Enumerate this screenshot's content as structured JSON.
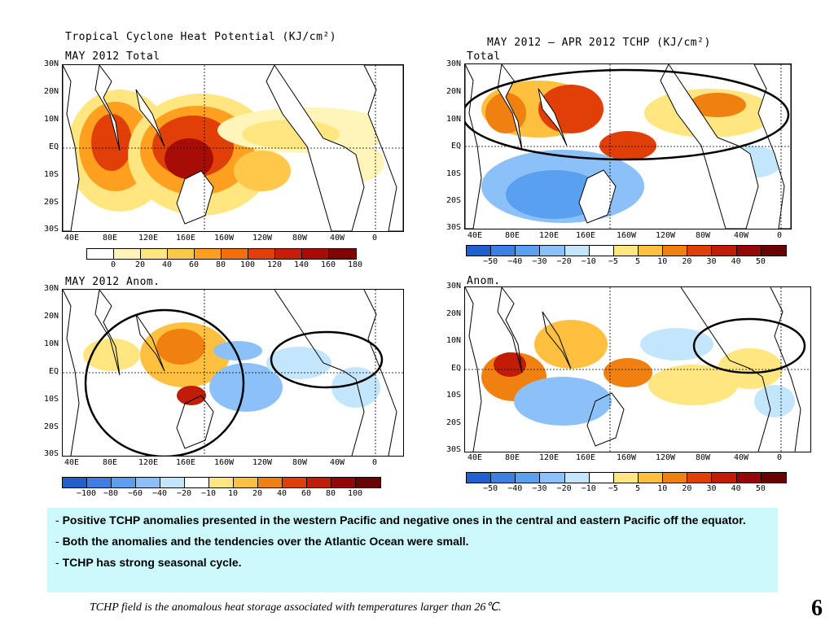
{
  "panels": [
    {
      "title": "Tropical Cyclone Heat Potential (KJ/cm²)",
      "subtitle": "MAY 2012 Total",
      "lat_labels": [
        "30N",
        "20N",
        "10N",
        "EQ",
        "10S",
        "20S",
        "30S"
      ],
      "lon_labels": [
        "40E",
        "80E",
        "120E",
        "160E",
        "160W",
        "120W",
        "80W",
        "40W",
        "0"
      ],
      "colorbar": {
        "colors": [
          "#ffffff",
          "#fff5b8",
          "#ffe680",
          "#ffc84a",
          "#ffa020",
          "#f07010",
          "#e04008",
          "#c81e08",
          "#a80c06",
          "#800404"
        ],
        "labels": [
          "0",
          "20",
          "40",
          "60",
          "80",
          "100",
          "120",
          "140",
          "160",
          "180"
        ]
      }
    },
    {
      "title": "MAY 2012 — APR 2012 TCHP (KJ/cm²)",
      "subtitle": "Total",
      "lat_labels": [
        "30N",
        "20N",
        "10N",
        "EQ",
        "10S",
        "20S",
        "30S"
      ],
      "lon_labels": [
        "40E",
        "80E",
        "120E",
        "160E",
        "160W",
        "120W",
        "80W",
        "40W",
        "0"
      ],
      "colorbar": {
        "colors": [
          "#1f5fd0",
          "#3c80e6",
          "#5aa0f0",
          "#8cc0f8",
          "#c4e6fc",
          "#ffffff",
          "#ffe680",
          "#ffc040",
          "#f08010",
          "#e04008",
          "#c01c08",
          "#960606",
          "#6a0202"
        ],
        "labels": [
          "−50",
          "−40",
          "−30",
          "−20",
          "−10",
          "−5",
          "5",
          "10",
          "20",
          "30",
          "40",
          "50"
        ]
      }
    },
    {
      "title": "",
      "subtitle": "MAY 2012 Anom.",
      "lat_labels": [
        "30N",
        "20N",
        "10N",
        "EQ",
        "10S",
        "20S",
        "30S"
      ],
      "lon_labels": [
        "40E",
        "80E",
        "120E",
        "160E",
        "160W",
        "120W",
        "80W",
        "40W",
        "0"
      ],
      "colorbar": {
        "colors": [
          "#1f5fd0",
          "#3c80e6",
          "#5aa0f0",
          "#8cc0f8",
          "#c4e6fc",
          "#ffffff",
          "#ffe680",
          "#ffc040",
          "#f08010",
          "#e04008",
          "#c01c08",
          "#960606",
          "#6a0202"
        ],
        "labels": [
          "−100",
          "−80",
          "−60",
          "−40",
          "−20",
          "−10",
          "10",
          "20",
          "40",
          "60",
          "80",
          "100"
        ]
      }
    },
    {
      "title": "",
      "subtitle": "Anom.",
      "lat_labels": [
        "30N",
        "20N",
        "10N",
        "EQ",
        "10S",
        "20S",
        "30S"
      ],
      "lon_labels": [
        "40E",
        "80E",
        "120E",
        "160E",
        "160W",
        "120W",
        "80W",
        "40W",
        "0"
      ],
      "colorbar": {
        "colors": [
          "#1f5fd0",
          "#3c80e6",
          "#5aa0f0",
          "#8cc0f8",
          "#c4e6fc",
          "#ffffff",
          "#ffe680",
          "#ffc040",
          "#f08010",
          "#e04008",
          "#c01c08",
          "#960606",
          "#6a0202"
        ],
        "labels": [
          "−50",
          "−40",
          "−30",
          "−20",
          "−10",
          "−5",
          "5",
          "10",
          "20",
          "30",
          "40",
          "50"
        ]
      }
    }
  ],
  "notes": [
    {
      "dash": "-",
      "text": "Positive TCHP anomalies presented in the western Pacific and negative ones in the central and eastern Pacific off the equator."
    },
    {
      "dash": "-",
      "text": "Both the anomalies and the tendencies over the Atlantic Ocean were small."
    },
    {
      "dash": "-",
      "text": "TCHP has strong seasonal cycle."
    }
  ],
  "footnote": "TCHP field is the anomalous heat storage associated with temperatures larger than 26℃.",
  "page_number": "6"
}
